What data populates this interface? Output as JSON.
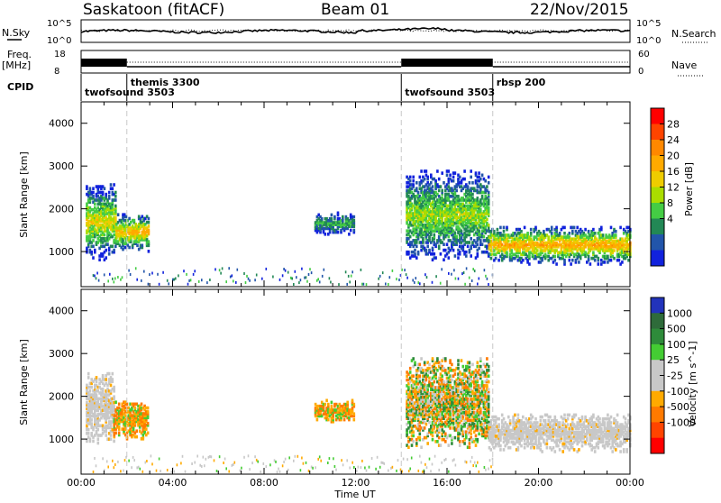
{
  "header": {
    "station": "Saskatoon (fitACF)",
    "beam": "Beam 01",
    "date": "22/Nov/2015"
  },
  "noise_panel": {
    "left_label": "N.Sky",
    "left_ticks": [
      "10^5",
      "10^0"
    ],
    "right_ticks": [
      "10^5",
      "10^0"
    ],
    "right_label": "N.Search"
  },
  "freq_panel": {
    "left_label_top": "Freq.",
    "left_label_units": "[MHz]",
    "left_ticks": [
      "18",
      "8"
    ],
    "right_ticks": [
      "60",
      "0"
    ],
    "right_label": "Nave"
  },
  "cpid": {
    "label": "CPID",
    "programs": [
      {
        "name": "twofsound 3503",
        "start_hour": 0.0
      },
      {
        "name": "themis 3300",
        "start_hour": 2.0
      },
      {
        "name": "twofsound 3503",
        "start_hour": 14.0
      },
      {
        "name": "rbsp 200",
        "start_hour": 18.0
      }
    ]
  },
  "chart_data": [
    {
      "type": "heatmap",
      "panel": "power",
      "ylabel": "Slant Range [km]",
      "xlabel": "",
      "xlim": [
        0,
        24
      ],
      "ylim": [
        180,
        4500
      ],
      "yticks": [
        "1000",
        "2000",
        "3000",
        "4000"
      ],
      "xticks": [
        "00:00",
        "04:00",
        "08:00",
        "12:00",
        "16:00",
        "20:00",
        "00:00"
      ],
      "colorbar": {
        "label": "Power [dB]",
        "ticks": [
          "28",
          "24",
          "20",
          "16",
          "12",
          "8",
          "4"
        ],
        "colors_top_to_bottom": [
          "#ff0000",
          "#ff4400",
          "#ff8800",
          "#ffaa00",
          "#eecc00",
          "#aadd00",
          "#44cc44",
          "#228855",
          "#2255aa",
          "#1122dd"
        ]
      },
      "regions": [
        {
          "t0": 0.2,
          "t1": 1.5,
          "r0": 800,
          "r1": 2600,
          "level": 0.6
        },
        {
          "t0": 1.5,
          "t1": 2.9,
          "r0": 1000,
          "r1": 1900,
          "level": 0.7
        },
        {
          "t0": 10.2,
          "t1": 11.9,
          "r0": 1400,
          "r1": 1900,
          "level": 0.35
        },
        {
          "t0": 14.2,
          "t1": 17.8,
          "r0": 800,
          "r1": 2900,
          "level": 0.5
        },
        {
          "t0": 17.8,
          "t1": 24.0,
          "r0": 700,
          "r1": 1600,
          "level": 0.75
        }
      ]
    },
    {
      "type": "heatmap",
      "panel": "velocity",
      "ylabel": "Slant Range [km]",
      "xlabel": "Time UT",
      "xlim": [
        0,
        24
      ],
      "ylim": [
        180,
        4500
      ],
      "yticks": [
        "1000",
        "2000",
        "3000",
        "4000"
      ],
      "xticks": [
        "00:00",
        "04:00",
        "08:00",
        "12:00",
        "16:00",
        "20:00",
        "00:00"
      ],
      "colorbar": {
        "label": "Velocity [m s^-1]",
        "ticks": [
          "1000",
          "500",
          "100",
          "25",
          "-25",
          "-100",
          "-500",
          "-1000"
        ],
        "colors_top_to_bottom": [
          "#2233bb",
          "#2e6b3a",
          "#2e8b3a",
          "#44cc33",
          "#c8c8c8",
          "#c8c8c8",
          "#ffaa00",
          "#ff7a00",
          "#ff4400",
          "#ff0000"
        ]
      },
      "regions": [
        {
          "t0": 0.2,
          "t1": 1.4,
          "r0": 900,
          "r1": 2600,
          "level": "gray"
        },
        {
          "t0": 1.4,
          "t1": 2.9,
          "r0": 1000,
          "r1": 1900,
          "level": "orange"
        },
        {
          "t0": 10.2,
          "t1": 11.9,
          "r0": 1400,
          "r1": 1900,
          "level": "orange"
        },
        {
          "t0": 14.2,
          "t1": 17.8,
          "r0": 800,
          "r1": 2900,
          "level": "mixed"
        },
        {
          "t0": 17.8,
          "t1": 24.0,
          "r0": 700,
          "r1": 1600,
          "level": "gray"
        }
      ]
    }
  ],
  "colors": {
    "dashed_line": "#c8c8c8",
    "axis": "#000000"
  }
}
